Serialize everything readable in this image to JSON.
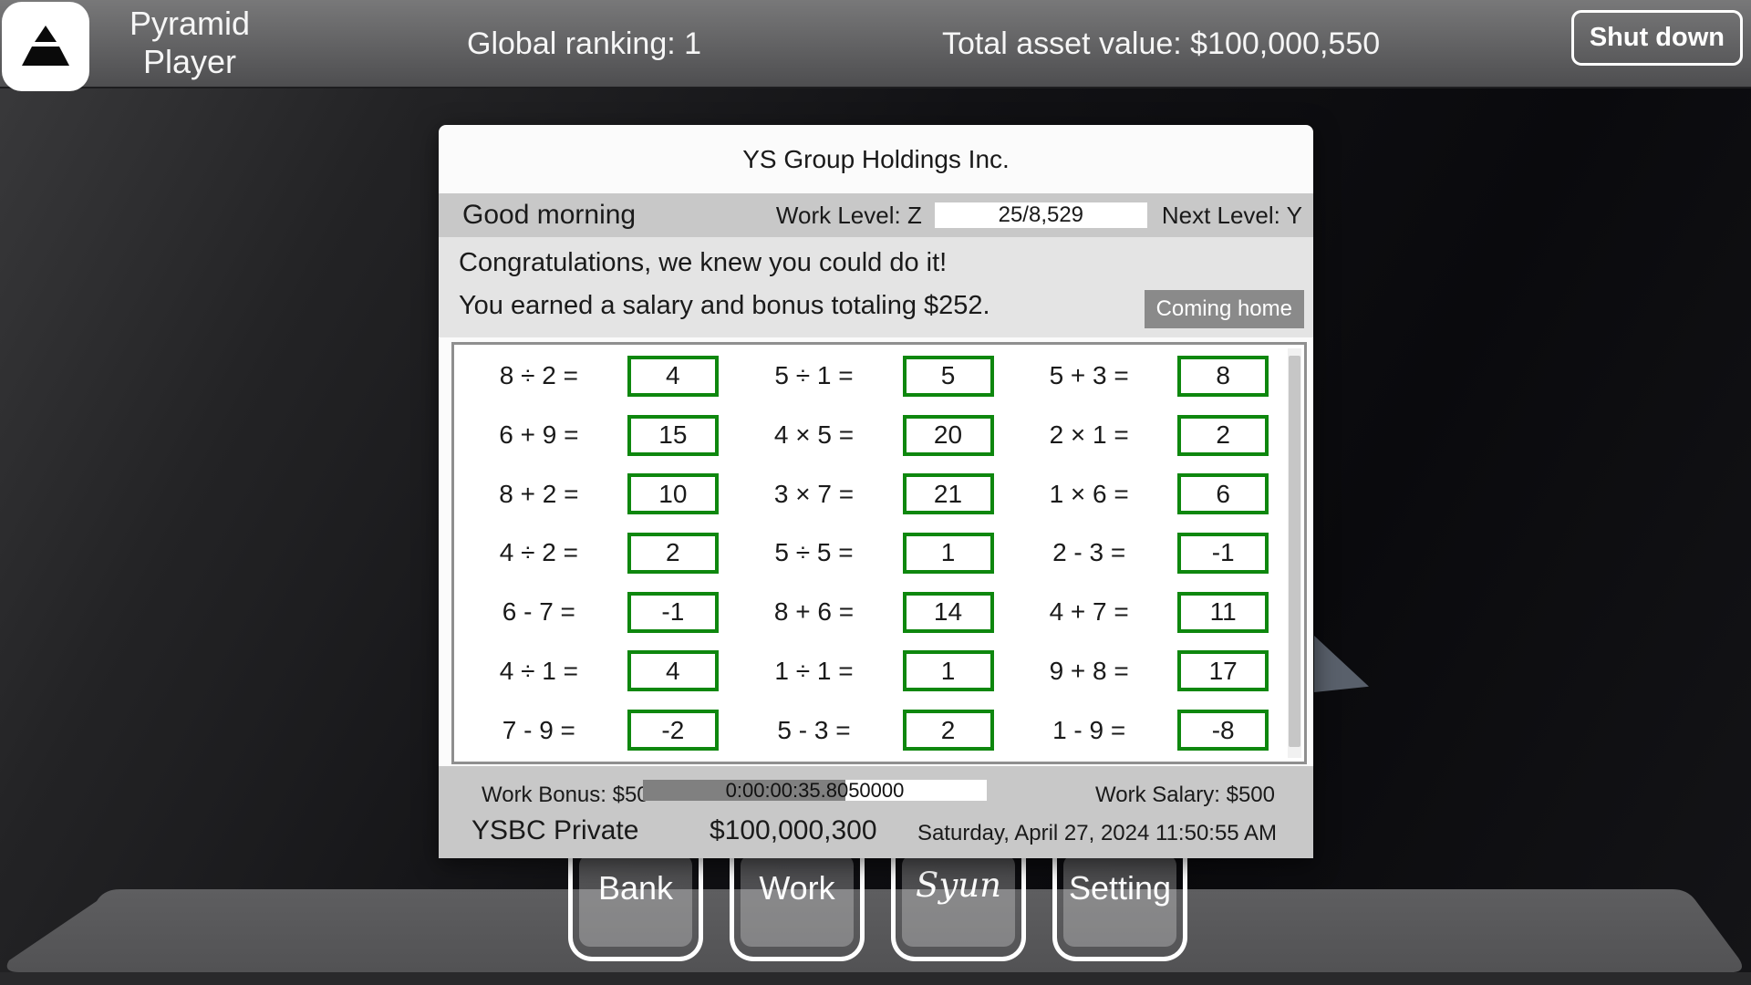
{
  "header": {
    "app_title_line1": "Pyramid",
    "app_title_line2": "Player",
    "global_ranking": "Global ranking: 1",
    "total_asset_value": "Total asset value: $100,000,550",
    "shutdown_label": "Shut down",
    "logo_icon": "pyramid-icon"
  },
  "panel": {
    "company_name": "YS Group Holdings Inc.",
    "greeting": "Good morning",
    "work_level_label": "Work Level: Z",
    "work_level_value": "25/8,529",
    "next_level_label": "Next Level: Y",
    "message_line1": "Congratulations, we knew you could do it!",
    "message_line2": "You earned a salary and bonus totaling $252.",
    "coming_home_label": "Coming home",
    "work_bonus": "Work Bonus: $50",
    "timer_value": "0:00:00:35.8050000",
    "timer_fill_percent": 59,
    "work_salary": "Work Salary: $500",
    "bank_name": "YSBC Private",
    "balance": "$100,000,300",
    "datetime": "Saturday, April 27, 2024 11:50:55 AM"
  },
  "problems": [
    {
      "eq": "8 ÷ 2 =",
      "ans": "4"
    },
    {
      "eq": "5 ÷ 1 =",
      "ans": "5"
    },
    {
      "eq": "5 + 3 =",
      "ans": "8"
    },
    {
      "eq": "6 + 9 =",
      "ans": "15"
    },
    {
      "eq": "4 × 5 =",
      "ans": "20"
    },
    {
      "eq": "2 × 1 =",
      "ans": "2"
    },
    {
      "eq": "8 + 2 =",
      "ans": "10"
    },
    {
      "eq": "3 × 7 =",
      "ans": "21"
    },
    {
      "eq": "1 × 6 =",
      "ans": "6"
    },
    {
      "eq": "4 ÷ 2 =",
      "ans": "2"
    },
    {
      "eq": "5 ÷ 5 =",
      "ans": "1"
    },
    {
      "eq": "2 - 3 =",
      "ans": "-1"
    },
    {
      "eq": "6 - 7 =",
      "ans": "-1"
    },
    {
      "eq": "8 + 6 =",
      "ans": "14"
    },
    {
      "eq": "4 + 7 =",
      "ans": "11"
    },
    {
      "eq": "4 ÷ 1 =",
      "ans": "4"
    },
    {
      "eq": "1 ÷ 1 =",
      "ans": "1"
    },
    {
      "eq": "9 + 8 =",
      "ans": "17"
    },
    {
      "eq": "7 - 9 =",
      "ans": "-2"
    },
    {
      "eq": "5 - 3 =",
      "ans": "2"
    },
    {
      "eq": "1 - 9 =",
      "ans": "-8"
    }
  ],
  "nav": {
    "items": [
      {
        "label": "Bank",
        "font": "normal"
      },
      {
        "label": "Work",
        "font": "normal"
      },
      {
        "label": "Syun",
        "font": "script"
      },
      {
        "label": "Setting",
        "font": "normal"
      }
    ]
  },
  "colors": {
    "accent_green": "#0e870e",
    "timer_fill_gray": "#808080",
    "panel_bar_gray": "#c8c8c8",
    "message_gray": "#e4e4e4",
    "coming_home_gray": "#8a8a8a",
    "floor_gray": "#58585a"
  }
}
